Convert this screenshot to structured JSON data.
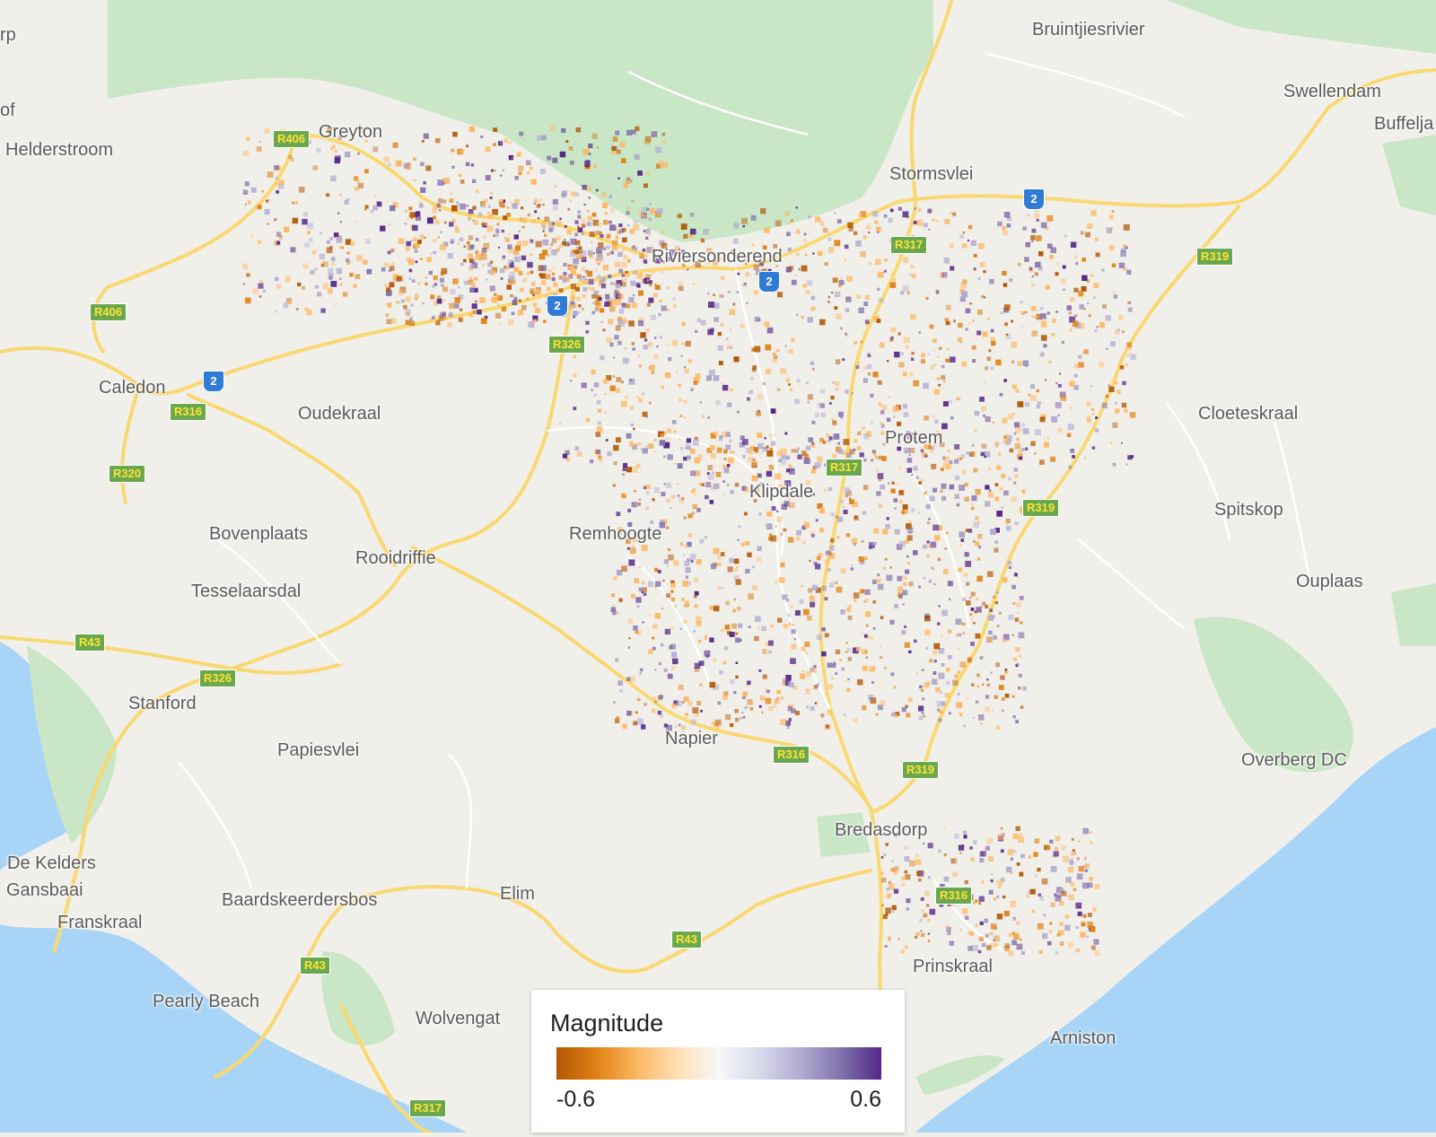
{
  "places": [
    {
      "name": "Bruintjiesrivier"
    },
    {
      "name": "Swellendam"
    },
    {
      "name": "Buffelja"
    },
    {
      "name": "Helderstroom"
    },
    {
      "name": "Greyton"
    },
    {
      "name": "Stormsvlei"
    },
    {
      "name": "Riviersonderend"
    },
    {
      "name": "Caledon"
    },
    {
      "name": "Oudekraal"
    },
    {
      "name": "Cloeteskraal"
    },
    {
      "name": "Protem"
    },
    {
      "name": "Klipdale"
    },
    {
      "name": "Spitskop"
    },
    {
      "name": "Bovenplaats"
    },
    {
      "name": "Rooidriffie"
    },
    {
      "name": "Remhoogte"
    },
    {
      "name": "Tesselaarsdal"
    },
    {
      "name": "Ouplaas"
    },
    {
      "name": "Stanford"
    },
    {
      "name": "Papiesvlei"
    },
    {
      "name": "Napier"
    },
    {
      "name": "Overberg DC"
    },
    {
      "name": "Bredasdorp"
    },
    {
      "name": "De Kelders"
    },
    {
      "name": "Gansbaai"
    },
    {
      "name": "Franskraal"
    },
    {
      "name": "Baardskeerdersbos"
    },
    {
      "name": "Elim"
    },
    {
      "name": "Prinskraal"
    },
    {
      "name": "Pearly Beach"
    },
    {
      "name": "Wolvengat"
    },
    {
      "name": "Arniston"
    },
    {
      "name": "rp"
    },
    {
      "name": "of"
    }
  ],
  "road_shields": [
    "R406",
    "R406",
    "R326",
    "R316",
    "R320",
    "R43",
    "R326",
    "R317",
    "R317",
    "R319",
    "R319",
    "R316",
    "R319",
    "R316",
    "R43",
    "R43",
    "R317"
  ],
  "national_shields": [
    "2",
    "2",
    "2",
    "2"
  ],
  "legend": {
    "title": "Magnitude",
    "min_label": "-0.6",
    "max_label": "0.6",
    "colors": {
      "negative": "#b35806",
      "neutral": "#f7f7f7",
      "positive": "#542788"
    }
  },
  "colors": {
    "land": "#f1efea",
    "water": "#a8d5f7",
    "park": "#c5e6c5",
    "road": "#f9d871"
  }
}
